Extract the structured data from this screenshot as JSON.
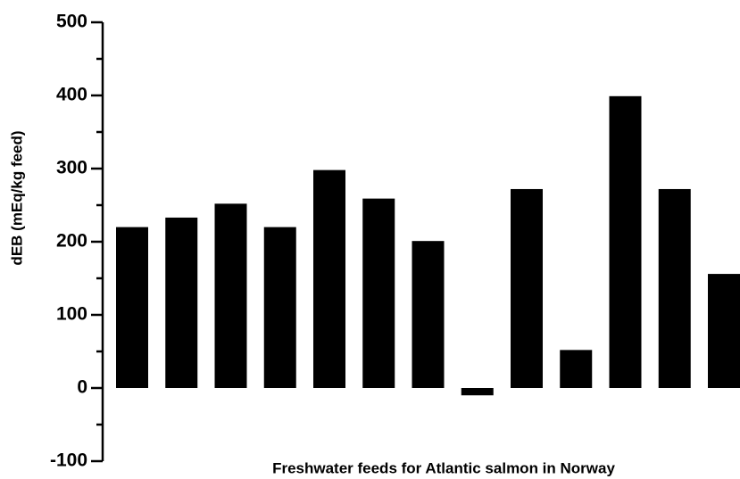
{
  "chart_data": {
    "type": "bar",
    "xlabel": "Freshwater feeds for Atlantic salmon in Norway",
    "ylabel": "dEB (mEq/kg feed)",
    "categories": [
      null,
      null,
      null,
      null,
      null,
      null,
      null,
      null,
      null,
      null,
      null,
      null,
      null
    ],
    "values": [
      220,
      233,
      252,
      220,
      298,
      259,
      201,
      -10,
      272,
      52,
      399,
      272,
      156
    ],
    "color": "#000000",
    "ylim": [
      -100,
      500
    ],
    "yticks": [
      -100,
      0,
      100,
      200,
      300,
      400,
      500
    ],
    "yminorticks": [
      -50,
      50,
      150,
      250,
      350,
      450
    ],
    "grid": false
  }
}
